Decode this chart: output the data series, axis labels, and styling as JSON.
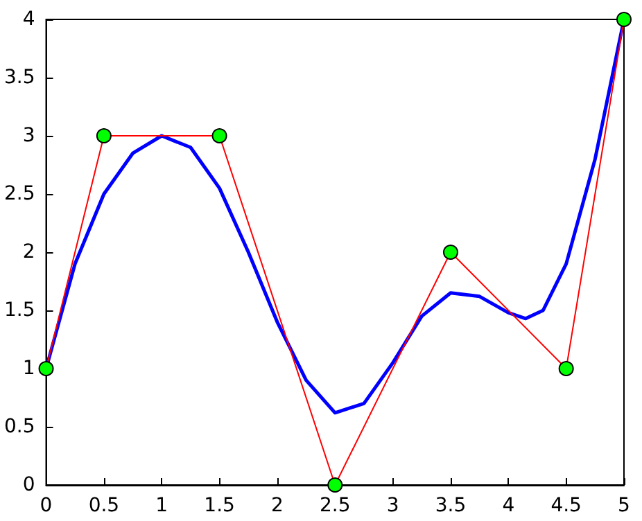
{
  "chart_data": {
    "type": "line",
    "xlim": [
      0,
      5
    ],
    "xticks": [
      0,
      0.5,
      1,
      1.5,
      2,
      2.5,
      3,
      3.5,
      4,
      4.5,
      5
    ],
    "ylim": [
      0,
      4
    ],
    "yticks": [
      0,
      0.5,
      1,
      1.5,
      2,
      2.5,
      3,
      3.5,
      4
    ],
    "grid": false,
    "series": [
      {
        "color": "#ff0000",
        "marker": "circle",
        "colors": [
          "#00ff00",
          "#00ff00",
          "#00ff00",
          "#00ff00",
          "#00ff00",
          "#00ff00",
          "#00ff00"
        ],
        "x": [
          0,
          0.5,
          1.5,
          2.5,
          3.5,
          4.5,
          5
        ],
        "values": [
          1,
          3,
          3,
          0,
          2,
          1,
          4
        ]
      },
      {
        "color": "#0000ff",
        "marker": "none",
        "x": [
          0,
          0.25,
          0.5,
          0.75,
          1,
          1.25,
          1.5,
          1.75,
          2,
          2.25,
          2.5,
          2.75,
          3,
          3.25,
          3.5,
          3.75,
          4,
          4.15,
          4.3,
          4.5,
          4.75,
          5
        ],
        "values": [
          1,
          1.9,
          2.5,
          2.85,
          3,
          2.9,
          2.55,
          2,
          1.4,
          0.9,
          0.62,
          0.7,
          1.05,
          1.45,
          1.65,
          1.62,
          1.48,
          1.43,
          1.5,
          1.9,
          2.8,
          4
        ]
      }
    ]
  }
}
